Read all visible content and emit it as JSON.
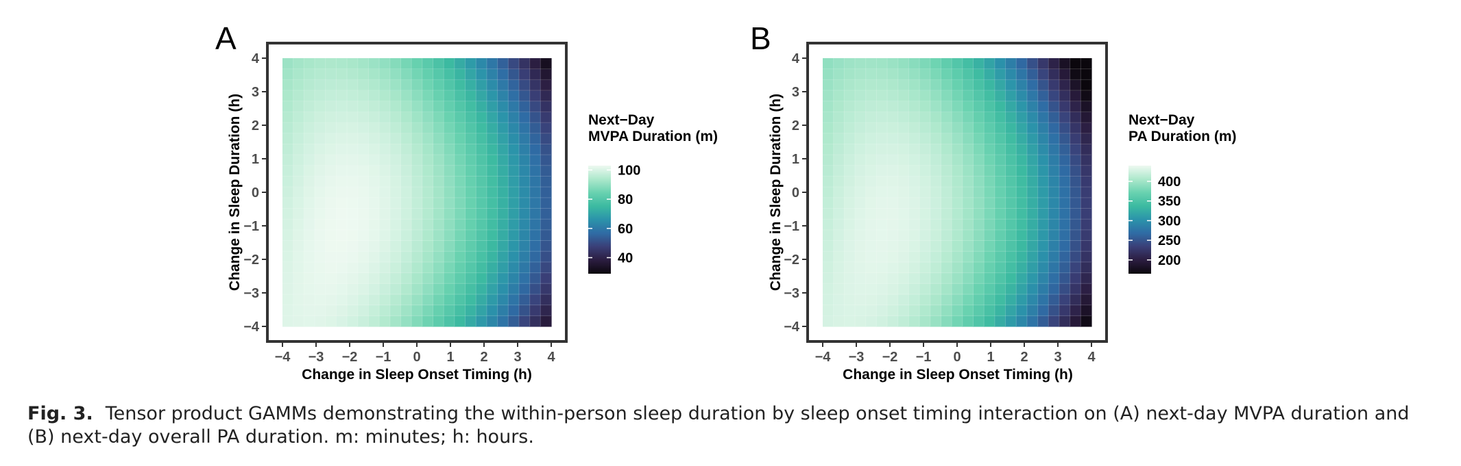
{
  "chart_data": [
    {
      "type": "heatmap",
      "panel_label": "A",
      "xlabel": "Change in Sleep Onset Timing (h)",
      "ylabel": "Change in Sleep Duration (h)",
      "xlim": [
        -4,
        4
      ],
      "ylim": [
        -4,
        4
      ],
      "x_ticks": [
        "−4",
        "−3",
        "−2",
        "−1",
        "0",
        "1",
        "2",
        "3",
        "4"
      ],
      "y_ticks": [
        "−4",
        "−3",
        "−2",
        "−1",
        "0",
        "1",
        "2",
        "3",
        "4"
      ],
      "grid_steps": 25,
      "legend_title": [
        "Next−Day",
        "MVPA Duration (m)"
      ],
      "legend_ticks": [
        100,
        80,
        60,
        40
      ],
      "color_range": [
        29,
        103
      ],
      "legend_position": "right",
      "surface": {
        "center": [
          -2.2,
          -1.0
        ],
        "peak": 103,
        "a": 1.35,
        "b": 0.4,
        "c": -0.5,
        "d": -0.3,
        "e": 0.03,
        "f": 0.15
      }
    },
    {
      "type": "heatmap",
      "panel_label": "B",
      "xlabel": "Change in Sleep Onset Timing (h)",
      "ylabel": "Change in Sleep Duration (h)",
      "xlim": [
        -4,
        4
      ],
      "ylim": [
        -4,
        4
      ],
      "x_ticks": [
        "−4",
        "−3",
        "−2",
        "−1",
        "0",
        "1",
        "2",
        "3",
        "4"
      ],
      "y_ticks": [
        "−4",
        "−3",
        "−2",
        "−1",
        "0",
        "1",
        "2",
        "3",
        "4"
      ],
      "grid_steps": 25,
      "legend_title": [
        "Next−Day",
        "PA Duration (m)"
      ],
      "legend_ticks": [
        400,
        350,
        300,
        250,
        200
      ],
      "color_range": [
        165,
        440
      ],
      "legend_position": "right",
      "surface": {
        "center": [
          -2.2,
          -1.1
        ],
        "peak": 435,
        "a": 5.6,
        "b": 1.5,
        "c": -2.0,
        "d": -1.3,
        "e": 0.15,
        "f": 0.65
      }
    }
  ],
  "palette": [
    "#0b070d",
    "#2b1d40",
    "#3a3f77",
    "#2f6ca5",
    "#2b93aa",
    "#3cbaa1",
    "#69d2b0",
    "#ade8cc",
    "#eef9f1"
  ],
  "caption": {
    "label": "Fig. 3.",
    "text": "Tensor product GAMMs demonstrating the within-person sleep duration by sleep onset timing interaction on (A) next-day MVPA duration and (B) next-day overall PA duration. m: minutes; h: hours."
  }
}
